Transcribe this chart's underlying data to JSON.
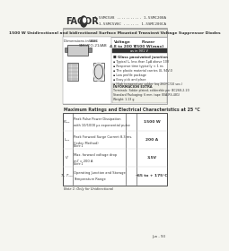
{
  "bg_color": "#f5f5f0",
  "white": "#ffffff",
  "black": "#000000",
  "dark_gray": "#333333",
  "mid_gray": "#888888",
  "light_gray": "#cccccc",
  "header_bg": "#e8e8e0",
  "table_header_bg": "#d0d0c8",
  "logo_text": "FAGOR",
  "part_numbers_right": [
    "1.5SMC5V8 ........... 1.5SMC200A",
    "1.5SMC5V8C ....... 1.5SMC200CA"
  ],
  "title_bar": "1500 W Unidirectional and bidirectional Surface Mounted Transient Voltage Suppressor Diodes",
  "case_label": "CASE\nSMC/DO-214AB",
  "voltage_label": "Voltage\n4.8 to 200 V",
  "power_label": "Power\n1500 W(max)",
  "features_header": "Glass passivated junction",
  "features": [
    "Typical Iₘ less than 1μA above 10V",
    "Response time typically < 1 ns",
    "The plastic material carries UL 94V-0",
    "Low profile package",
    "Easy pick and place",
    "High temperature solder (eq 260°C/10 sec.)"
  ],
  "info_header": "INFORMACION EXTRA",
  "info_text": "Terminals: Solder plated, solderable per IEC268-2-20\nStandard Packaging: 6 mm. tape (EIA-RS-481)\nWeight: 1.13 g",
  "table_title": "Maximum Ratings and Electrical Characteristics at 25 °C",
  "table_rows": [
    {
      "symbol": "Pₚₚₖ",
      "desc": "Peak Pulse Power Dissipation\nwith 10/1000 μs exponential pulse",
      "note": "",
      "value": "1500 W"
    },
    {
      "symbol": "Iₚₚₖ",
      "desc": "Peak Forward Surge Current 8.3 ms.\n(Jedec Method)",
      "note": "Note 1",
      "value": "200 A"
    },
    {
      "symbol": "Vⁱ",
      "desc": "Max. forward voltage drop\nmIⁱ = 200 A",
      "note": "Note 1",
      "value": "3.5V"
    },
    {
      "symbol": "Tⱼ, Tₛₜₕ",
      "desc": "Operating Junction and Storage\nTemperature Range",
      "note": "",
      "value": "-65 to + 175°C"
    }
  ],
  "note1": "Note 1: Only for Unidirectional",
  "page_num": "Jun - 93"
}
